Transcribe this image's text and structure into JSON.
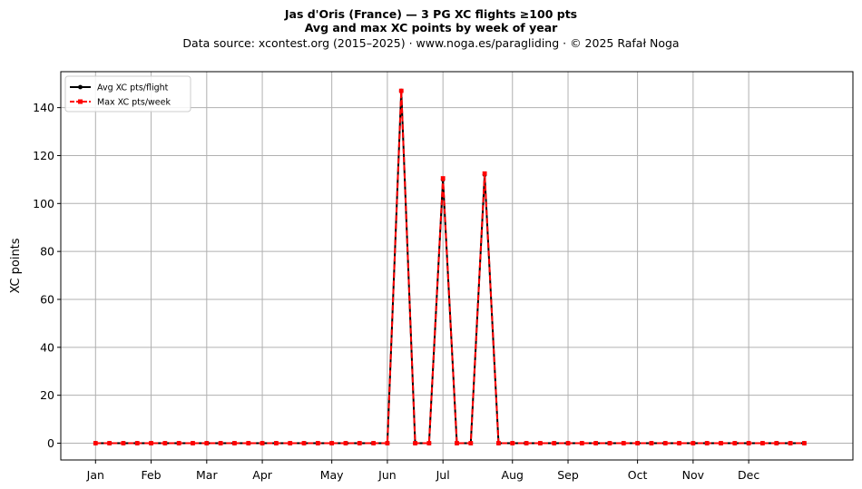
{
  "header": {
    "title_line1": "Jas d'Oris (France)  —  3 PG XC flights ≥100 pts",
    "title_line2": "Avg and max XC points by week of year",
    "source_line": "Data source: xcontest.org (2015–2025)  ·  www.noga.es/paragliding  ·  © 2025 Rafał Noga"
  },
  "chart_data": {
    "type": "line",
    "title": "Jas d'Oris (France)  —  3 PG XC flights ≥100 pts",
    "subtitle": "Avg and max XC points by week of year",
    "xlabel": "",
    "ylabel": "XC points",
    "x": [
      1,
      2,
      3,
      4,
      5,
      6,
      7,
      8,
      9,
      10,
      11,
      12,
      13,
      14,
      15,
      16,
      17,
      18,
      19,
      20,
      21,
      22,
      23,
      24,
      25,
      26,
      27,
      28,
      29,
      30,
      31,
      32,
      33,
      34,
      35,
      36,
      37,
      38,
      39,
      40,
      41,
      42,
      43,
      44,
      45,
      46,
      47,
      48,
      49,
      50,
      51,
      52
    ],
    "xlim": [
      -1.5,
      55.5
    ],
    "ylim": [
      -7,
      155
    ],
    "yticks": [
      0,
      20,
      40,
      60,
      80,
      100,
      120,
      140
    ],
    "xticks": [
      {
        "x": 1,
        "label": "Jan"
      },
      {
        "x": 5,
        "label": "Feb"
      },
      {
        "x": 9,
        "label": "Mar"
      },
      {
        "x": 13,
        "label": "Apr"
      },
      {
        "x": 18,
        "label": "May"
      },
      {
        "x": 22,
        "label": "Jun"
      },
      {
        "x": 26,
        "label": "Jul"
      },
      {
        "x": 31,
        "label": "Aug"
      },
      {
        "x": 35,
        "label": "Sep"
      },
      {
        "x": 40,
        "label": "Oct"
      },
      {
        "x": 44,
        "label": "Nov"
      },
      {
        "x": 48,
        "label": "Dec"
      }
    ],
    "grid": true,
    "legend_position": "top-left",
    "series": [
      {
        "name": "Avg XC pts/flight",
        "color": "#000000",
        "marker": "circle",
        "values": [
          0,
          0,
          0,
          0,
          0,
          0,
          0,
          0,
          0,
          0,
          0,
          0,
          0,
          0,
          0,
          0,
          0,
          0,
          0,
          0,
          0,
          0,
          147,
          0,
          0,
          110,
          0,
          0,
          112,
          0,
          0,
          0,
          0,
          0,
          0,
          0,
          0,
          0,
          0,
          0,
          0,
          0,
          0,
          0,
          0,
          0,
          0,
          0,
          0,
          0,
          0,
          0
        ]
      },
      {
        "name": "Max XC pts/week",
        "color": "#ff0000",
        "marker": "square",
        "values": [
          0,
          0,
          0,
          0,
          0,
          0,
          0,
          0,
          0,
          0,
          0,
          0,
          0,
          0,
          0,
          0,
          0,
          0,
          0,
          0,
          0,
          0,
          147,
          0,
          0,
          110.5,
          0,
          0,
          112.5,
          0,
          0,
          0,
          0,
          0,
          0,
          0,
          0,
          0,
          0,
          0,
          0,
          0,
          0,
          0,
          0,
          0,
          0,
          0,
          0,
          0,
          0,
          0
        ]
      }
    ]
  }
}
